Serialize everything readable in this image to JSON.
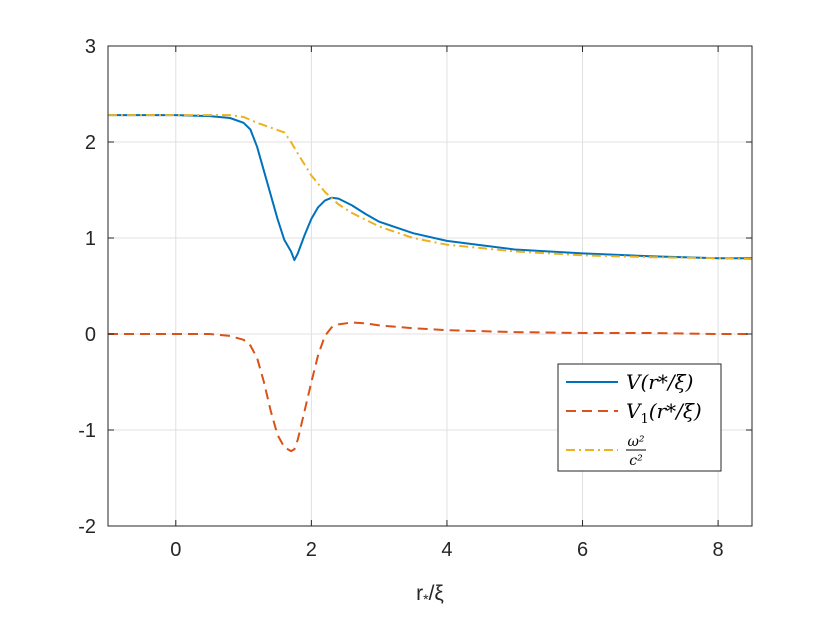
{
  "chart_data": {
    "type": "line",
    "xlabel": "r",
    "xlabel_sub": "*",
    "xlabel_tail": "/ξ",
    "xlim": [
      -1,
      8.5
    ],
    "ylim": [
      -2,
      3
    ],
    "xticks": [
      0,
      2,
      4,
      6,
      8
    ],
    "yticks": [
      -2,
      -1,
      0,
      1,
      2,
      3
    ],
    "grid": true,
    "legend_position": "inside-right",
    "series": [
      {
        "name": "V(r*/ξ)",
        "legend_main": "V",
        "legend_args": "(r*/ξ)",
        "color": "#0072BD",
        "dash": "solid",
        "x": [
          -1,
          0,
          0.5,
          0.8,
          1.0,
          1.1,
          1.2,
          1.3,
          1.4,
          1.5,
          1.6,
          1.7,
          1.75,
          1.8,
          1.9,
          2.0,
          2.1,
          2.2,
          2.3,
          2.4,
          2.6,
          2.8,
          3.0,
          3.5,
          4.0,
          5.0,
          6.0,
          7.0,
          8.0,
          8.5
        ],
        "y": [
          2.28,
          2.28,
          2.27,
          2.25,
          2.2,
          2.13,
          1.95,
          1.7,
          1.45,
          1.2,
          0.98,
          0.86,
          0.77,
          0.84,
          1.03,
          1.2,
          1.32,
          1.39,
          1.42,
          1.41,
          1.34,
          1.25,
          1.17,
          1.05,
          0.97,
          0.88,
          0.84,
          0.81,
          0.79,
          0.79
        ]
      },
      {
        "name": "V1(r*/ξ)",
        "legend_main": "V",
        "legend_sub": "1",
        "legend_args": "(r*/ξ)",
        "color": "#D95319",
        "dash": "dashed",
        "x": [
          -1,
          0,
          0.5,
          0.8,
          1.0,
          1.1,
          1.2,
          1.3,
          1.4,
          1.5,
          1.6,
          1.7,
          1.75,
          1.8,
          1.9,
          2.0,
          2.1,
          2.2,
          2.3,
          2.4,
          2.6,
          2.8,
          3.0,
          3.5,
          4.0,
          5.0,
          6.0,
          7.0,
          8.0,
          8.5
        ],
        "y": [
          0.0,
          0.0,
          0.0,
          -0.02,
          -0.06,
          -0.12,
          -0.25,
          -0.5,
          -0.8,
          -1.05,
          -1.18,
          -1.22,
          -1.2,
          -1.1,
          -0.8,
          -0.5,
          -0.22,
          -0.02,
          0.07,
          0.1,
          0.12,
          0.11,
          0.09,
          0.06,
          0.04,
          0.02,
          0.01,
          0.01,
          0.0,
          0.0
        ]
      },
      {
        "name": "ω²/c²",
        "legend_num": "ω²",
        "legend_den": "c²",
        "color": "#EDB120",
        "dash": "dashdot",
        "x": [
          -1,
          0,
          0.5,
          0.8,
          1.0,
          1.2,
          1.4,
          1.6,
          1.7,
          1.8,
          2.0,
          2.2,
          2.4,
          2.6,
          3.0,
          3.5,
          4.0,
          5.0,
          6.0,
          7.0,
          8.0,
          8.5
        ],
        "y": [
          2.28,
          2.28,
          2.28,
          2.28,
          2.26,
          2.2,
          2.15,
          2.1,
          2.0,
          1.88,
          1.65,
          1.48,
          1.35,
          1.26,
          1.12,
          1.0,
          0.93,
          0.86,
          0.82,
          0.8,
          0.79,
          0.78
        ]
      }
    ]
  }
}
